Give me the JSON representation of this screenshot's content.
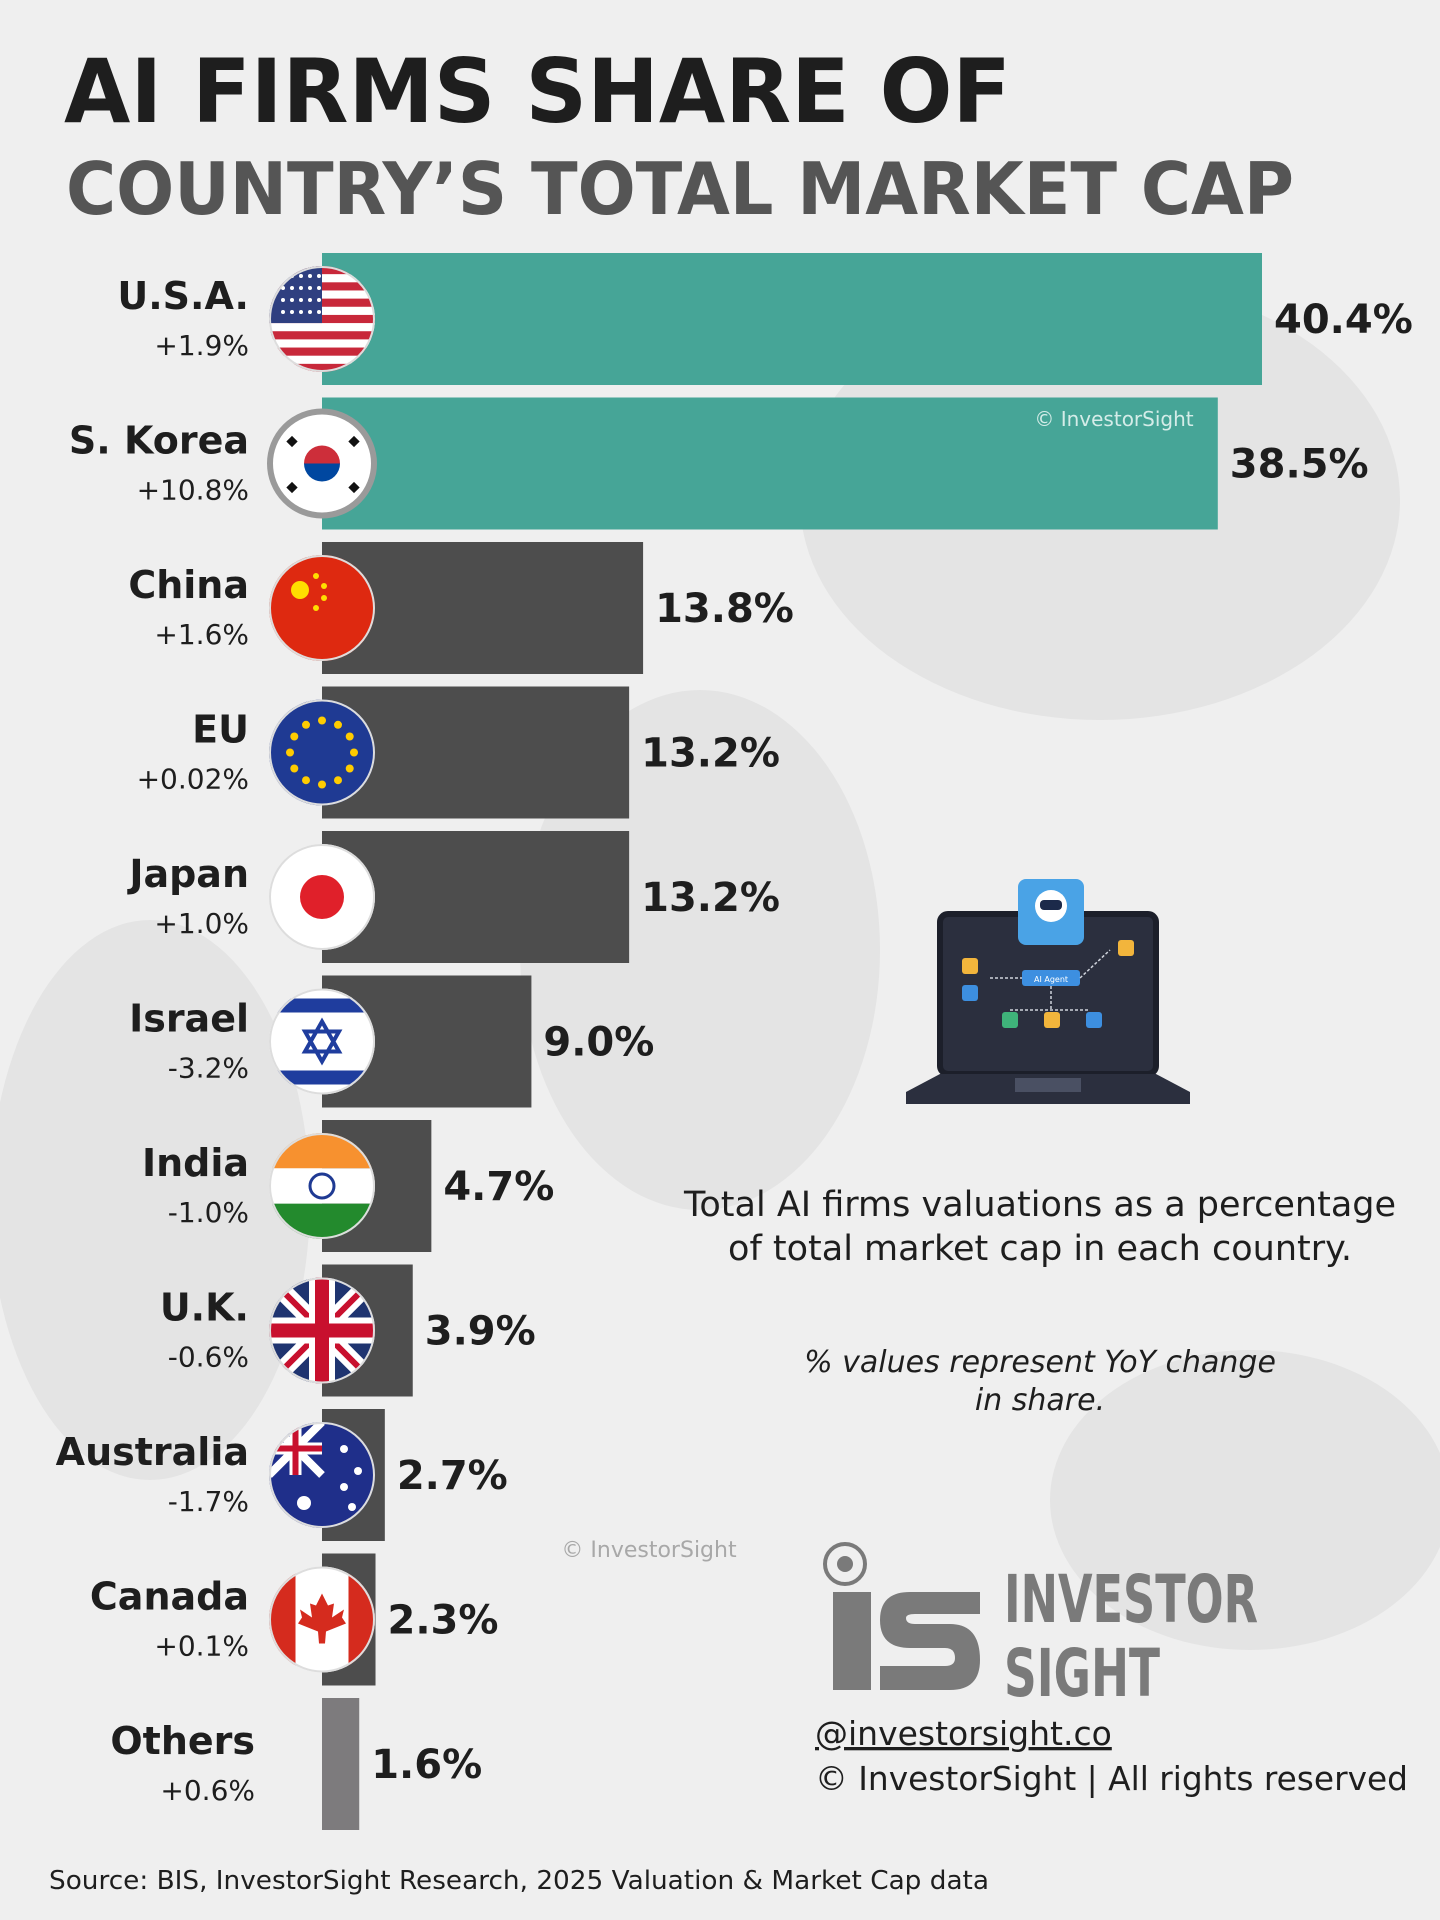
{
  "chart_data": {
    "type": "bar",
    "title": "AI FIRMS SHARE OF",
    "subtitle": "COUNTRY’S TOTAL MARKET CAP",
    "categories": [
      "U.S.A.",
      "S. Korea",
      "China",
      "EU",
      "Japan",
      "Israel",
      "India",
      "U.K.",
      "Australia",
      "Canada",
      "Others"
    ],
    "yoy_labels": [
      "+1.9%",
      "+10.8%",
      "+1.6%",
      "+0.02%",
      "+1.0%",
      "-3.2%",
      "-1.0%",
      "-0.6%",
      "-1.7%",
      "+0.1%",
      "+0.6%"
    ],
    "values": [
      40.4,
      38.5,
      13.8,
      13.2,
      13.2,
      9.0,
      4.7,
      3.9,
      2.7,
      2.3,
      1.6
    ],
    "value_labels": [
      "40.4%",
      "38.5%",
      "13.8%",
      "13.2%",
      "13.2%",
      "9.0%",
      "4.7%",
      "3.9%",
      "2.7%",
      "2.3%",
      "1.6%"
    ],
    "colors": [
      "#46a597",
      "#46a597",
      "#4d4d4d",
      "#4d4d4d",
      "#4d4d4d",
      "#4d4d4d",
      "#4d4d4d",
      "#4d4d4d",
      "#4d4d4d",
      "#4d4d4d",
      "#7d7b7d"
    ],
    "annotations": [
      "Total AI firms valuations as a percentage",
      "of total market cap in each country.",
      "% values represent YoY change",
      "in share."
    ],
    "illustration_label": "AI Agent",
    "watermarks": [
      "© InvestorSight",
      "© InvestorSight"
    ],
    "brand": [
      "INVESTOR",
      "SIGHT"
    ],
    "handle": "@investorsight.co",
    "rights": "© InvestorSight |  All rights reserved",
    "source": "Source: BIS, InvestorSight Research, 2025 Valuation & Market Cap data"
  }
}
